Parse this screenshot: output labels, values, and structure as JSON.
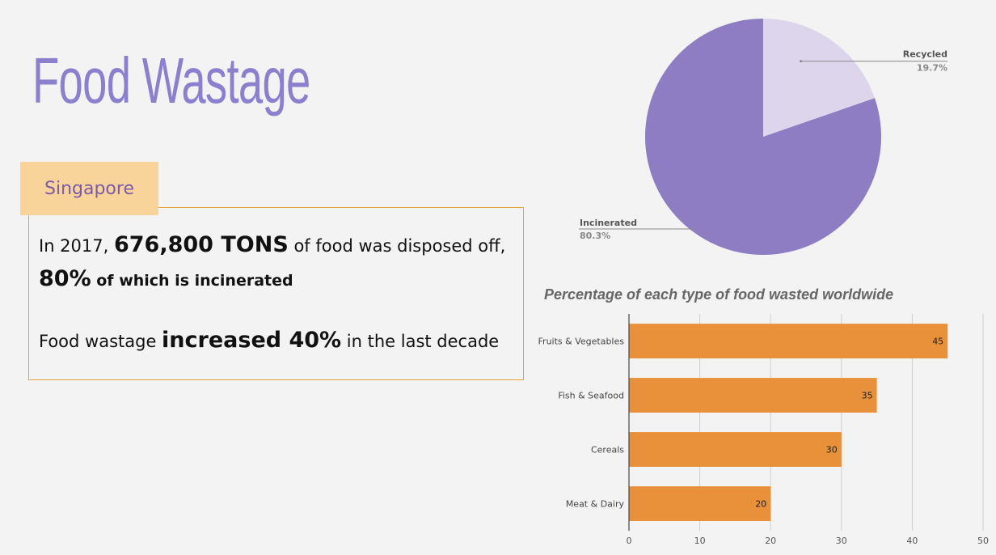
{
  "slide": {
    "title": "Food Wastage",
    "region_tag": "Singapore"
  },
  "facts": {
    "l1_a": "In 2017, ",
    "l1_b": "676,800 TONS",
    "l1_c": " of food was disposed off,",
    "l2_a": "80%",
    "l2_b": " of which is incinerated",
    "l3_a": "Food wastage ",
    "l3_b": "increased 40%",
    "l3_c": " in the last decade"
  },
  "colors": {
    "pie_recycled": "#dcd5ec",
    "pie_incinerated": "#8e7dc3",
    "bar": "#e8913a"
  },
  "chart_data": [
    {
      "type": "pie",
      "labels": [
        "Recycled",
        "Incinerated"
      ],
      "values": [
        19.7,
        80.3
      ],
      "value_labels": [
        "19.7%",
        "80.3%"
      ]
    },
    {
      "type": "bar",
      "orientation": "horizontal",
      "title": "Percentage of each type of food wasted worldwide",
      "categories": [
        "Fruits & Vegetables",
        "Fish & Seafood",
        "Cereals",
        "Meat & Dairy"
      ],
      "values": [
        45,
        35,
        30,
        20
      ],
      "xlim": [
        0,
        50
      ],
      "xticks": [
        0,
        10,
        20,
        30,
        40,
        50
      ],
      "grid": true
    }
  ]
}
